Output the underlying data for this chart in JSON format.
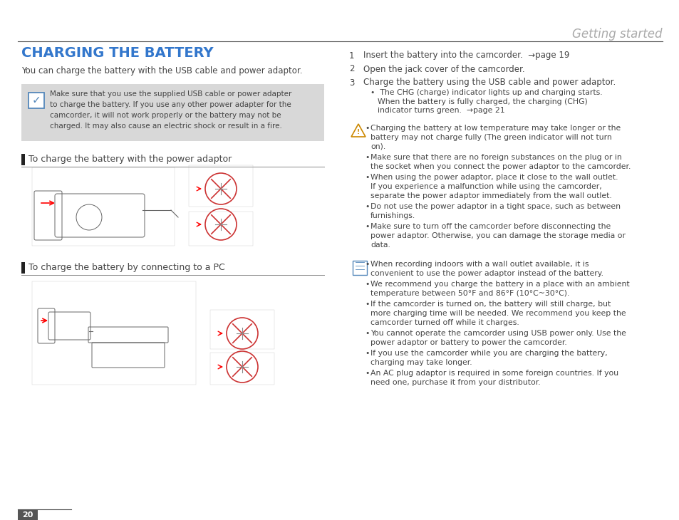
{
  "bg_color": "#ffffff",
  "header_text": "Getting started",
  "header_color": "#aaaaaa",
  "header_line_color": "#555555",
  "page_number": "20",
  "page_number_color": "#ffffff",
  "page_number_bg": "#555555",
  "title": "CHARGING THE BATTERY",
  "title_color": "#3377cc",
  "subtitle": "You can charge the battery with the USB cable and power adaptor.",
  "subtitle_color": "#444444",
  "warning_box_bg": "#d8d8d8",
  "warning_text_line1": "Make sure that you use the supplied USB cable or power adapter",
  "warning_text_line2": "to charge the battery. If you use any other power adapter for the",
  "warning_text_line3": "camcorder, it will not work properly or the battery may not be",
  "warning_text_line4": "charged. It may also cause an electric shock or result in a fire.",
  "warning_text_color": "#444444",
  "section1_title": "To charge the battery with the power adaptor",
  "section2_title": "To charge the battery by connecting to a PC",
  "bar_color": "#222222",
  "line_color": "#888888",
  "text_color": "#444444",
  "step1": "1    Insert the battery into the camcorder.  →page 19",
  "step2": "2    Open the jack cover of the camcorder.",
  "step3_main": "3    Charge the battery using the USB cable and power adaptor.",
  "step3_bullet1": "The CHG (charge) indicator lights up and charging starts.",
  "step3_bullet2": "When the battery is fully charged, the charging (CHG)",
  "step3_bullet3": "indicator turns green.  →page 21",
  "warn_bullets": [
    "Charging the battery at low temperature may take longer or the battery may not charge fully (The green indicator will not turn on).",
    "Make sure that there are no foreign substances on the plug or in the socket when you connect the power adaptor to the camcorder.",
    "When using the power adaptor, place it close to the wall outlet. If you experience a malfunction while using the camcorder, separate the power adaptor immediately from the wall outlet.",
    "Do not use the power adaptor in a tight space, such as between furnishings.",
    "Make sure to turn off the camcorder before disconnecting the power adaptor. Otherwise, you can damage the storage media or data."
  ],
  "note_bullets": [
    "When recording indoors with a wall outlet available, it is convenient to use the power adaptor instead of the battery.",
    "We recommend you charge the battery in a place with an ambient temperature between 50°F and 86°F (10°C~30°C).",
    "If the camcorder is turned on, the battery will still charge, but more charging time will be needed. We recommend you keep the camcorder turned off while it charges.",
    "You cannot operate the camcorder using USB power only. Use the power adaptor or battery to power the camcorder.",
    "If you use the camcorder while you are charging the battery, charging may take longer.",
    "An AC plug adaptor is required in some foreign countries. If you need one, purchase it from your distributor."
  ]
}
